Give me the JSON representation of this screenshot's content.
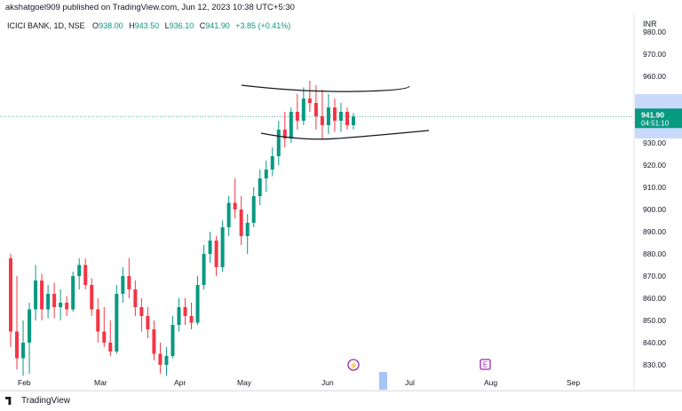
{
  "header": {
    "published_by": "akshatgoel909 published on TradingView.com, Jun 12, 2023 10:38 UTC+5:30"
  },
  "legend": {
    "symbol": "ICICI BANK, 1D, NSE",
    "open_label": "O",
    "open_value": "938.00",
    "high_label": "H",
    "high_value": "943.50",
    "low_label": "L",
    "low_value": "936.10",
    "close_label": "C",
    "close_value": "941.90",
    "change": "+3.85 (+0.41%)"
  },
  "price_axis": {
    "currency": "INR",
    "last_price": "941.90",
    "countdown": "04:51:10"
  },
  "footer": {
    "brand": "TradingView"
  },
  "colors": {
    "up": "#089981",
    "down": "#f23645",
    "accent": "#2962ff",
    "event": "#9c27b0"
  },
  "chart_data": {
    "type": "candlestick",
    "y_ticks": [
      "830.00",
      "840.00",
      "850.00",
      "860.00",
      "870.00",
      "880.00",
      "890.00",
      "900.00",
      "910.00",
      "920.00",
      "930.00",
      "940.00",
      "950.00",
      "960.00",
      "970.00",
      "980.00"
    ],
    "x_ticks": [
      "Feb",
      "Mar",
      "Apr",
      "May",
      "Jun",
      "Jul",
      "Aug",
      "Sep"
    ],
    "ylim": [
      825,
      980
    ],
    "last_close": 941.9,
    "candles": [
      {
        "o": 878,
        "h": 880,
        "l": 838,
        "c": 845
      },
      {
        "o": 845,
        "h": 870,
        "l": 828,
        "c": 833
      },
      {
        "o": 833,
        "h": 850,
        "l": 825,
        "c": 840
      },
      {
        "o": 840,
        "h": 858,
        "l": 826,
        "c": 855
      },
      {
        "o": 855,
        "h": 875,
        "l": 850,
        "c": 868
      },
      {
        "o": 868,
        "h": 871,
        "l": 850,
        "c": 855
      },
      {
        "o": 855,
        "h": 866,
        "l": 851,
        "c": 862
      },
      {
        "o": 862,
        "h": 867,
        "l": 851,
        "c": 856
      },
      {
        "o": 856,
        "h": 864,
        "l": 850,
        "c": 858
      },
      {
        "o": 858,
        "h": 861,
        "l": 852,
        "c": 855
      },
      {
        "o": 855,
        "h": 872,
        "l": 854,
        "c": 870
      },
      {
        "o": 870,
        "h": 878,
        "l": 864,
        "c": 875
      },
      {
        "o": 875,
        "h": 878,
        "l": 864,
        "c": 866
      },
      {
        "o": 866,
        "h": 869,
        "l": 852,
        "c": 855
      },
      {
        "o": 855,
        "h": 860,
        "l": 840,
        "c": 845
      },
      {
        "o": 845,
        "h": 856,
        "l": 838,
        "c": 840
      },
      {
        "o": 840,
        "h": 850,
        "l": 834,
        "c": 836
      },
      {
        "o": 836,
        "h": 866,
        "l": 835,
        "c": 862
      },
      {
        "o": 862,
        "h": 874,
        "l": 858,
        "c": 870
      },
      {
        "o": 870,
        "h": 878,
        "l": 860,
        "c": 864
      },
      {
        "o": 864,
        "h": 868,
        "l": 852,
        "c": 856
      },
      {
        "o": 856,
        "h": 860,
        "l": 845,
        "c": 852
      },
      {
        "o": 852,
        "h": 856,
        "l": 842,
        "c": 846
      },
      {
        "o": 846,
        "h": 850,
        "l": 832,
        "c": 835
      },
      {
        "o": 835,
        "h": 840,
        "l": 826,
        "c": 830
      },
      {
        "o": 830,
        "h": 838,
        "l": 825,
        "c": 834
      },
      {
        "o": 834,
        "h": 852,
        "l": 833,
        "c": 848
      },
      {
        "o": 848,
        "h": 860,
        "l": 845,
        "c": 856
      },
      {
        "o": 856,
        "h": 860,
        "l": 848,
        "c": 852
      },
      {
        "o": 852,
        "h": 858,
        "l": 846,
        "c": 849
      },
      {
        "o": 849,
        "h": 870,
        "l": 848,
        "c": 866
      },
      {
        "o": 866,
        "h": 884,
        "l": 864,
        "c": 880
      },
      {
        "o": 880,
        "h": 890,
        "l": 876,
        "c": 886
      },
      {
        "o": 886,
        "h": 888,
        "l": 870,
        "c": 874
      },
      {
        "o": 874,
        "h": 895,
        "l": 872,
        "c": 892
      },
      {
        "o": 892,
        "h": 906,
        "l": 888,
        "c": 903
      },
      {
        "o": 903,
        "h": 914,
        "l": 896,
        "c": 900
      },
      {
        "o": 900,
        "h": 906,
        "l": 884,
        "c": 888
      },
      {
        "o": 888,
        "h": 898,
        "l": 880,
        "c": 894
      },
      {
        "o": 894,
        "h": 910,
        "l": 892,
        "c": 906
      },
      {
        "o": 906,
        "h": 918,
        "l": 902,
        "c": 914
      },
      {
        "o": 914,
        "h": 922,
        "l": 908,
        "c": 918
      },
      {
        "o": 918,
        "h": 928,
        "l": 915,
        "c": 924
      },
      {
        "o": 924,
        "h": 940,
        "l": 920,
        "c": 936
      },
      {
        "o": 936,
        "h": 944,
        "l": 928,
        "c": 932
      },
      {
        "o": 932,
        "h": 946,
        "l": 930,
        "c": 944
      },
      {
        "o": 944,
        "h": 952,
        "l": 936,
        "c": 940
      },
      {
        "o": 940,
        "h": 955,
        "l": 938,
        "c": 950
      },
      {
        "o": 950,
        "h": 958,
        "l": 944,
        "c": 948
      },
      {
        "o": 948,
        "h": 956,
        "l": 936,
        "c": 942
      },
      {
        "o": 942,
        "h": 954,
        "l": 932,
        "c": 938
      },
      {
        "o": 938,
        "h": 952,
        "l": 934,
        "c": 946
      },
      {
        "o": 946,
        "h": 950,
        "l": 935,
        "c": 940
      },
      {
        "o": 940,
        "h": 948,
        "l": 935,
        "c": 944
      },
      {
        "o": 944,
        "h": 946,
        "l": 936,
        "c": 938
      },
      {
        "o": 938,
        "h": 943.5,
        "l": 936.1,
        "c": 941.9
      }
    ],
    "annotations": [
      {
        "type": "trendline-upper",
        "points": [
          [
            20,
            955
          ],
          [
            48,
            955
          ],
          [
            67,
            955
          ]
        ]
      },
      {
        "type": "trendline-lower",
        "points": [
          [
            22,
            933
          ],
          [
            43,
            930
          ],
          [
            72,
            934
          ]
        ]
      }
    ]
  }
}
